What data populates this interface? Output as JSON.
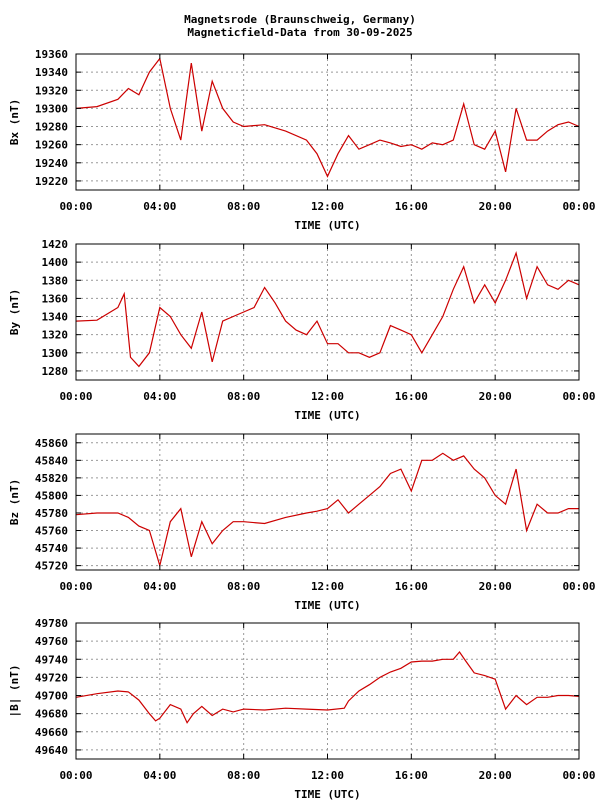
{
  "title_line1": "Magnetsrode (Braunschweig, Germany)",
  "title_line2": "Magneticfield-Data from 30-09-2025",
  "colors": {
    "data": "#cc0000",
    "grid": "#999999",
    "frame": "#000000"
  },
  "chart_data": [
    {
      "type": "line",
      "ylabel": "Bx (nT)",
      "xlabel": "TIME (UTC)",
      "ylim": [
        19210,
        19360
      ],
      "yticks": [
        19220,
        19240,
        19260,
        19280,
        19300,
        19320,
        19340,
        19360
      ],
      "xticks": [
        "00:00",
        "04:00",
        "08:00",
        "12:00",
        "16:00",
        "20:00",
        "00:00"
      ],
      "xlim_hours": [
        0,
        24
      ],
      "grid": true,
      "x": [
        0,
        1,
        2,
        2.5,
        3,
        3.5,
        4,
        4.5,
        5,
        5.5,
        6,
        6.5,
        7,
        7.5,
        8,
        9,
        10,
        11,
        11.5,
        12,
        12.5,
        13,
        13.5,
        14,
        14.5,
        15,
        15.5,
        16,
        16.5,
        17,
        17.5,
        18,
        18.5,
        19,
        19.5,
        20,
        20.5,
        21,
        21.5,
        22,
        22.5,
        23,
        23.5,
        24
      ],
      "y": [
        19300,
        19302,
        19310,
        19322,
        19315,
        19340,
        19355,
        19300,
        19265,
        19350,
        19275,
        19330,
        19300,
        19285,
        19280,
        19282,
        19275,
        19265,
        19250,
        19225,
        19250,
        19270,
        19255,
        19260,
        19265,
        19262,
        19258,
        19260,
        19255,
        19262,
        19260,
        19265,
        19305,
        19260,
        19255,
        19275,
        19230,
        19300,
        19265,
        19265,
        19275,
        19282,
        19285,
        19280
      ]
    },
    {
      "type": "line",
      "ylabel": "By (nT)",
      "xlabel": "TIME (UTC)",
      "ylim": [
        1270,
        1420
      ],
      "yticks": [
        1280,
        1300,
        1320,
        1340,
        1360,
        1380,
        1400,
        1420
      ],
      "xticks": [
        "00:00",
        "04:00",
        "08:00",
        "12:00",
        "16:00",
        "20:00",
        "00:00"
      ],
      "xlim_hours": [
        0,
        24
      ],
      "grid": true,
      "x": [
        0,
        1,
        2,
        2.3,
        2.6,
        3,
        3.5,
        4,
        4.5,
        5,
        5.5,
        6,
        6.5,
        7,
        7.5,
        8,
        8.5,
        9,
        9.5,
        10,
        10.5,
        11,
        11.5,
        12,
        12.5,
        13,
        13.5,
        14,
        14.5,
        15,
        15.5,
        16,
        16.5,
        17,
        17.5,
        18,
        18.5,
        19,
        19.5,
        20,
        20.5,
        21,
        21.5,
        22,
        22.5,
        23,
        23.5,
        24
      ],
      "y": [
        1335,
        1336,
        1350,
        1365,
        1295,
        1285,
        1300,
        1350,
        1340,
        1320,
        1305,
        1345,
        1290,
        1335,
        1340,
        1345,
        1350,
        1372,
        1355,
        1335,
        1325,
        1320,
        1335,
        1310,
        1310,
        1300,
        1300,
        1295,
        1300,
        1330,
        1325,
        1320,
        1300,
        1320,
        1340,
        1370,
        1395,
        1355,
        1375,
        1355,
        1380,
        1410,
        1360,
        1395,
        1375,
        1370,
        1380,
        1375
      ]
    },
    {
      "type": "line",
      "ylabel": "Bz (nT)",
      "xlabel": "TIME (UTC)",
      "ylim": [
        45715,
        45870
      ],
      "yticks": [
        45720,
        45740,
        45760,
        45780,
        45800,
        45820,
        45840,
        45860
      ],
      "xticks": [
        "00:00",
        "04:00",
        "08:00",
        "12:00",
        "16:00",
        "20:00",
        "00:00"
      ],
      "xlim_hours": [
        0,
        24
      ],
      "grid": true,
      "x": [
        0,
        1,
        2,
        2.5,
        3,
        3.5,
        4,
        4.5,
        5,
        5.5,
        6,
        6.5,
        7,
        7.5,
        8,
        9,
        10,
        11,
        11.5,
        12,
        12.5,
        13,
        13.5,
        14,
        14.5,
        15,
        15.5,
        16,
        16.5,
        17,
        17.5,
        18,
        18.5,
        19,
        19.5,
        20,
        20.5,
        21,
        21.5,
        22,
        22.5,
        23,
        23.5,
        24
      ],
      "y": [
        45778,
        45780,
        45780,
        45775,
        45765,
        45760,
        45720,
        45770,
        45785,
        45730,
        45770,
        45745,
        45760,
        45770,
        45770,
        45768,
        45775,
        45780,
        45782,
        45785,
        45795,
        45780,
        45790,
        45800,
        45810,
        45825,
        45830,
        45805,
        45840,
        45840,
        45848,
        45840,
        45845,
        45830,
        45820,
        45800,
        45790,
        45830,
        45760,
        45790,
        45780,
        45780,
        45785,
        45785
      ]
    },
    {
      "type": "line",
      "ylabel": "|B| (nT)",
      "xlabel": "TIME (UTC)",
      "ylim": [
        49630,
        49780
      ],
      "yticks": [
        49640,
        49660,
        49680,
        49700,
        49720,
        49740,
        49760,
        49780
      ],
      "xticks": [
        "00:00",
        "04:00",
        "08:00",
        "12:00",
        "16:00",
        "20:00",
        "00:00"
      ],
      "xlim_hours": [
        0,
        24
      ],
      "grid": true,
      "x": [
        0,
        1,
        2,
        2.5,
        3,
        3.5,
        3.8,
        4,
        4.5,
        5,
        5.3,
        5.6,
        6,
        6.5,
        7,
        7.5,
        8,
        9,
        10,
        11,
        12,
        12.8,
        13,
        13.5,
        14,
        14.5,
        15,
        15.5,
        16,
        16.5,
        17,
        17.5,
        18,
        18.3,
        18.6,
        19,
        19.5,
        20,
        20.5,
        21,
        21.5,
        22,
        22.5,
        23,
        23.5,
        24
      ],
      "y": [
        49698,
        49702,
        49705,
        49704,
        49695,
        49680,
        49672,
        49675,
        49690,
        49685,
        49670,
        49680,
        49688,
        49678,
        49685,
        49682,
        49685,
        49684,
        49686,
        49685,
        49684,
        49686,
        49694,
        49705,
        49712,
        49720,
        49726,
        49730,
        49737,
        49738,
        49738,
        49740,
        49740,
        49748,
        49738,
        49725,
        49722,
        49718,
        49685,
        49700,
        49690,
        49698,
        49698,
        49700,
        49700,
        49699
      ]
    }
  ]
}
